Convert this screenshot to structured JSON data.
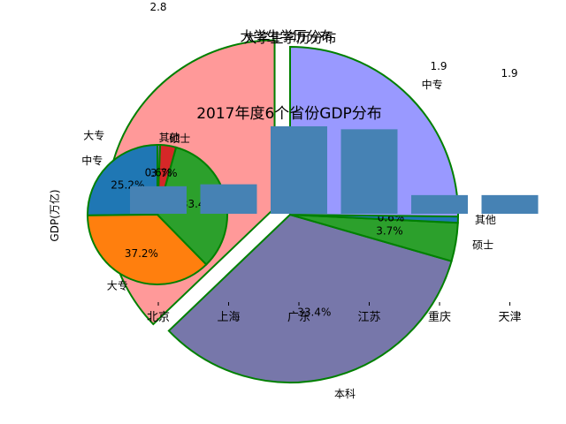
{
  "chart_data": [
    {
      "type": "bar",
      "title": "2017年度6个省份GDP分布",
      "ylabel": "GDP(万亿)",
      "categories": [
        "北京",
        "上海",
        "广东",
        "江苏",
        "重庆",
        "天津"
      ],
      "values": [
        2.8,
        3.0,
        8.9,
        8.6,
        1.9,
        1.9
      ],
      "value_labels": [
        {
          "category": "北京",
          "text": "2.8"
        },
        {
          "category": "重庆",
          "text": "1.9"
        },
        {
          "category": "天津",
          "text": "1.9"
        }
      ],
      "bar_color": "#4682B4"
    },
    {
      "type": "pie",
      "title": "大学生学历分布",
      "labels": [
        "大专",
        "本科",
        "硕士",
        "其他",
        "中专"
      ],
      "values": [
        37.2,
        33.4,
        3.7,
        0.6,
        25.2
      ],
      "pct_labels": [
        "37.2%",
        "33.4%",
        "3.7%",
        "0.6%",
        "25.2%"
      ],
      "colors": [
        "#ff9999",
        "#7777aa",
        "#2ca02c",
        "#1f77b4",
        "#9999ff"
      ],
      "explode": [
        0.1,
        0,
        0,
        0,
        0
      ],
      "edge_color": "#008000"
    },
    {
      "type": "pie",
      "title": "大学生学历分布",
      "labels": [
        "中专",
        "大专",
        "本科",
        "硕士",
        "其他"
      ],
      "values": [
        25.2,
        37.2,
        33.4,
        3.7,
        0.6
      ],
      "pct_labels": [
        "25.2%",
        "37.2%",
        "33.4%",
        "3.7%",
        "0.6%"
      ],
      "colors": [
        "#1f77b4",
        "#ff7f0e",
        "#2ca02c",
        "#d62728",
        "#9467bd"
      ],
      "edge_color": "#008000"
    }
  ]
}
